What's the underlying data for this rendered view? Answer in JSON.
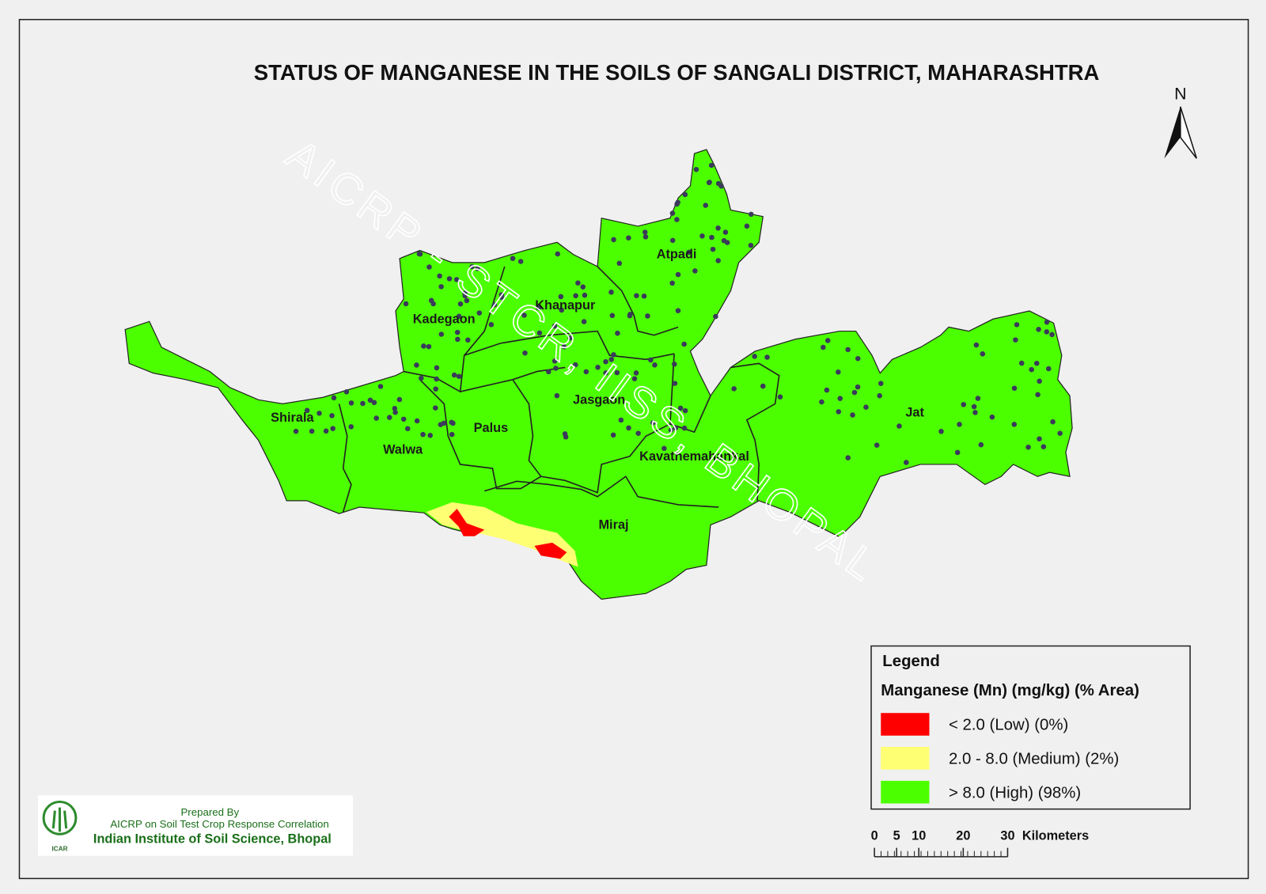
{
  "title": "STATUS OF MANGANESE IN THE SOILS OF SANGALI  DISTRICT, MAHARASHTRA",
  "north": "N",
  "watermark": "AICRP - STCR, IISS, BHOPAL",
  "districts": [
    "Atpadi",
    "Khanapur",
    "Kadegaon",
    "Shirala",
    "Jasgaon",
    "Palus",
    "Walwa",
    "Jat",
    "Kavathemahankal",
    "Miraj"
  ],
  "legend": {
    "title": "Legend",
    "subtitle": "Manganese (Mn) (mg/kg) (% Area)",
    "items": [
      {
        "label": "< 2.0 (Low) (0%)",
        "color": "#ff0000"
      },
      {
        "label": "2.0 - 8.0 (Medium) (2%)",
        "color": "#ffff73"
      },
      {
        "label": "> 8.0 (High) (98%)",
        "color": "#4cff00"
      }
    ]
  },
  "scale": {
    "ticks": [
      0,
      5,
      10,
      20,
      30
    ],
    "unit": "Kilometers"
  },
  "credit": {
    "prepared": "Prepared By",
    "project": "AICRP on Soil Test Crop Response Correlation",
    "institute": "Indian Institute of Soil Science, Bhopal",
    "logo_text": "ICAR"
  }
}
